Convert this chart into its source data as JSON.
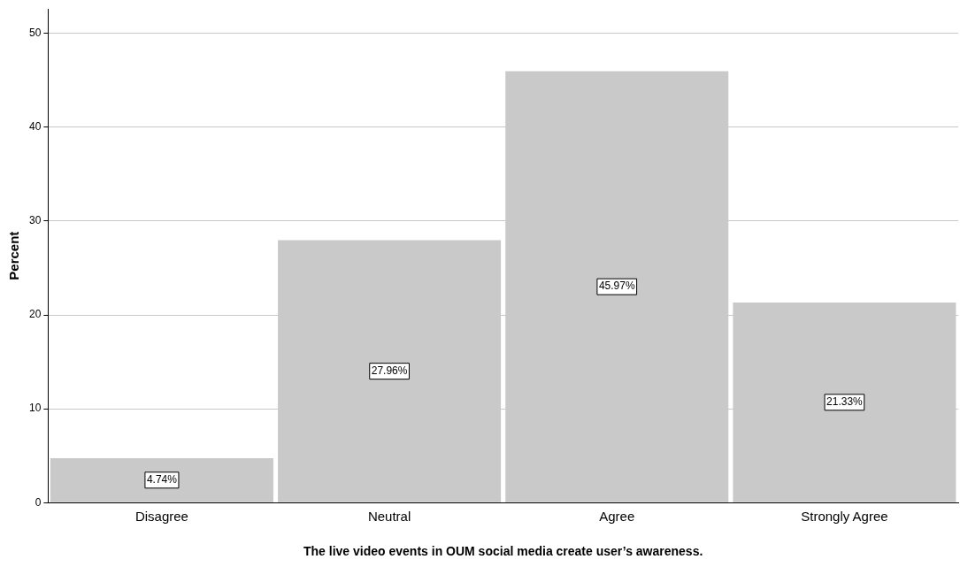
{
  "chart_data": {
    "type": "bar",
    "xlabel": "The live video events in OUM social media create user’s awareness.",
    "ylabel": "Percent",
    "categories": [
      "Disagree",
      "Neutral",
      "Agree",
      "Strongly Agree"
    ],
    "values": [
      4.74,
      27.96,
      45.97,
      21.33
    ],
    "value_labels": [
      "4.74%",
      "27.96%",
      "45.97%",
      "21.33%"
    ],
    "color": "#c9c9c9",
    "ylim": [
      0,
      52.6
    ],
    "yticks": [
      0,
      10,
      20,
      30,
      40,
      50
    ],
    "grid": "y",
    "legend": false
  }
}
